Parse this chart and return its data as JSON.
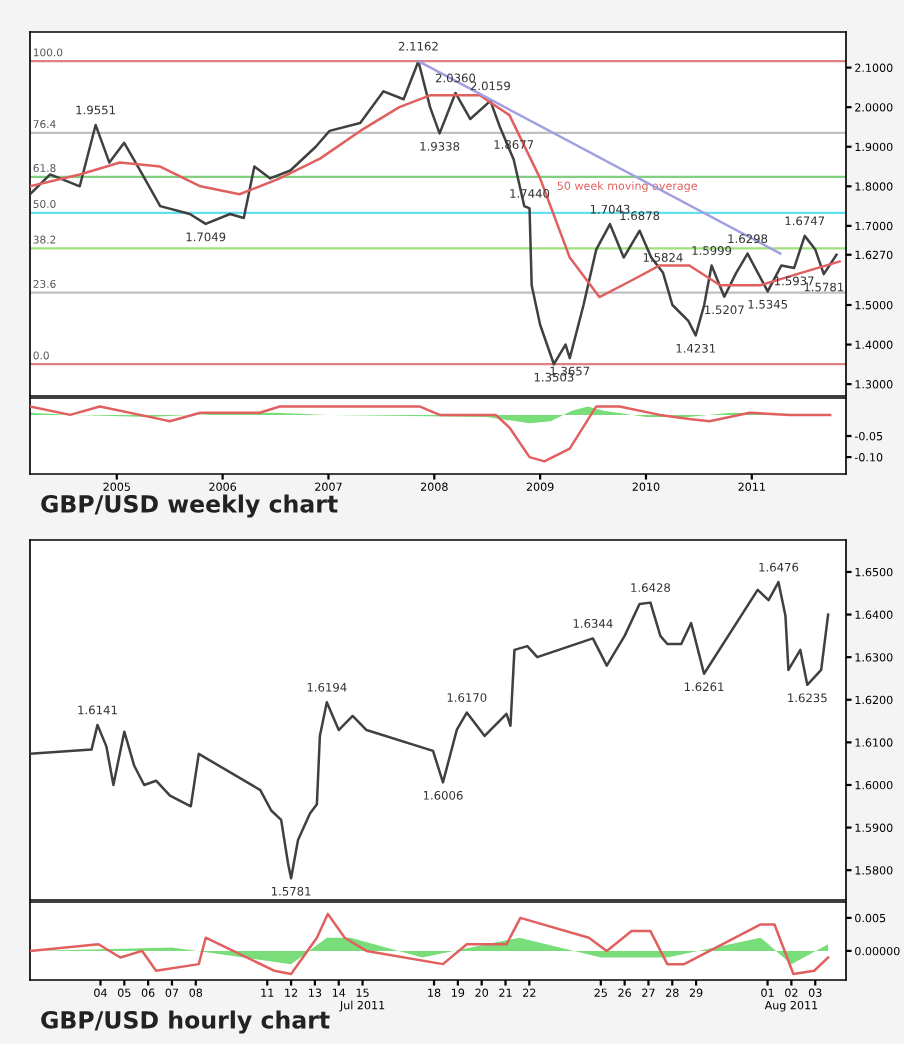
{
  "chart_data": [
    {
      "type": "line",
      "title": "GBP/USD weekly chart",
      "xlim": [
        2004.18,
        2011.89
      ],
      "ylim": [
        1.27,
        2.19
      ],
      "tick_labels": "y",
      "yticks": [
        {
          "value": 1.3,
          "label": "1.3000"
        },
        {
          "value": 1.4,
          "label": "1.4000"
        },
        {
          "value": 1.5,
          "label": "1.5000"
        },
        {
          "value": 1.627,
          "label": "1.6270"
        },
        {
          "value": 1.7,
          "label": "1.7000"
        },
        {
          "value": 1.8,
          "label": "1.8000"
        },
        {
          "value": 1.9,
          "label": "1.9000"
        },
        {
          "value": 2.0,
          "label": "2.0000"
        },
        {
          "value": 2.1,
          "label": "2.1000"
        }
      ],
      "series": [
        {
          "color": "#404040",
          "x": [
            2004.18,
            2004.37,
            2004.65,
            2004.8,
            2004.93,
            2005.07,
            2005.22,
            2005.41,
            2005.69,
            2005.84,
            2006.07,
            2006.2,
            2006.3,
            2006.45,
            2006.64,
            2006.88,
            2007.01,
            2007.3,
            2007.52,
            2007.71,
            2007.85,
            2007.96,
            2008.05,
            2008.2,
            2008.34,
            2008.53,
            2008.62,
            2008.75,
            2008.85,
            2008.9,
            2008.92,
            2009.0,
            2009.13,
            2009.24,
            2009.28,
            2009.41,
            2009.53,
            2009.66,
            2009.79,
            2009.94,
            2010.05,
            2010.16,
            2010.25,
            2010.4,
            2010.47,
            2010.55,
            2010.62,
            2010.74,
            2010.85,
            2010.96,
            2011.15,
            2011.28,
            2011.4,
            2011.5,
            2011.6,
            2011.68,
            2011.8
          ],
          "values": [
            1.78,
            1.83,
            1.8,
            1.9551,
            1.86,
            1.91,
            1.84,
            1.75,
            1.73,
            1.7049,
            1.73,
            1.72,
            1.85,
            1.82,
            1.84,
            1.9,
            1.94,
            1.96,
            2.04,
            2.02,
            2.1162,
            2.0,
            1.9338,
            2.036,
            1.97,
            2.0159,
            1.95,
            1.8677,
            1.75,
            1.744,
            1.55,
            1.45,
            1.3503,
            1.4,
            1.3657,
            1.5,
            1.64,
            1.7043,
            1.62,
            1.6878,
            1.62,
            1.5824,
            1.5,
            1.46,
            1.4231,
            1.5,
            1.5999,
            1.5207,
            1.58,
            1.6298,
            1.5345,
            1.6,
            1.5937,
            1.6747,
            1.64,
            1.5781,
            1.627
          ]
        },
        {
          "name": "50 week moving average",
          "color": "#e06060",
          "x": [
            2004.18,
            2004.65,
            2005.03,
            2005.41,
            2005.79,
            2006.16,
            2006.54,
            2006.92,
            2007.3,
            2007.67,
            2007.96,
            2008.43,
            2008.71,
            2009.0,
            2009.28,
            2009.56,
            2009.85,
            2010.13,
            2010.41,
            2010.7,
            2011.08,
            2011.45,
            2011.83
          ],
          "values": [
            1.8,
            1.83,
            1.86,
            1.85,
            1.8,
            1.78,
            1.82,
            1.87,
            1.94,
            2.0,
            2.03,
            2.03,
            1.98,
            1.82,
            1.62,
            1.52,
            1.56,
            1.6,
            1.6,
            1.55,
            1.55,
            1.58,
            1.61
          ]
        },
        {
          "color": "#a0a0e0",
          "x": [
            2007.85,
            2011.27
          ],
          "values": [
            2.1162,
            1.63
          ]
        }
      ],
      "ref_lines": [
        {
          "axis": "y",
          "value": 2.1162,
          "color": "#e08080"
        },
        {
          "axis": "y",
          "value": 1.935,
          "color": "#c0c0c0"
        },
        {
          "axis": "y",
          "value": 1.824,
          "color": "#80d080"
        },
        {
          "axis": "y",
          "value": 1.733,
          "color": "#60e0f0"
        },
        {
          "axis": "y",
          "value": 1.643,
          "color": "#a0e080"
        },
        {
          "axis": "y",
          "value": 1.531,
          "color": "#c0c0c0"
        },
        {
          "axis": "y",
          "value": 1.3503,
          "color": "#e08080"
        }
      ],
      "annotations": [
        {
          "text": "100.0",
          "x": 2004.18,
          "y": 2.1162
        },
        {
          "text": "76.4",
          "x": 2004.18,
          "y": 1.935
        },
        {
          "text": "61.8",
          "x": 2004.18,
          "y": 1.824
        },
        {
          "text": "50.0",
          "x": 2004.18,
          "y": 1.733
        },
        {
          "text": "38.2",
          "x": 2004.18,
          "y": 1.643
        },
        {
          "text": "23.6",
          "x": 2004.18,
          "y": 1.531
        },
        {
          "text": "0.0",
          "x": 2004.18,
          "y": 1.3503
        },
        {
          "text": "1.9551",
          "x": 2004.8,
          "y": 1.9551
        },
        {
          "text": "1.7049",
          "x": 2005.84,
          "y": 1.7049
        },
        {
          "text": "2.1162",
          "x": 2007.85,
          "y": 2.1162
        },
        {
          "text": "2.0360",
          "x": 2008.2,
          "y": 2.036
        },
        {
          "text": "2.0159",
          "x": 2008.53,
          "y": 2.0159
        },
        {
          "text": "1.9338",
          "x": 2008.05,
          "y": 1.9338
        },
        {
          "text": "1.8677",
          "x": 2008.75,
          "y": 1.8677
        },
        {
          "text": "1.7440",
          "x": 2008.9,
          "y": 1.744
        },
        {
          "text": "1.3503",
          "x": 2009.13,
          "y": 1.3503
        },
        {
          "text": "1.3657",
          "x": 2009.28,
          "y": 1.3657
        },
        {
          "text": "1.7043",
          "x": 2009.66,
          "y": 1.7043
        },
        {
          "text": "1.6878",
          "x": 2009.94,
          "y": 1.6878
        },
        {
          "text": "1.5824",
          "x": 2010.16,
          "y": 1.5824
        },
        {
          "text": "1.4231",
          "x": 2010.47,
          "y": 1.4231
        },
        {
          "text": "1.5999",
          "x": 2010.62,
          "y": 1.5999
        },
        {
          "text": "1.5207",
          "x": 2010.74,
          "y": 1.5207
        },
        {
          "text": "1.6298",
          "x": 2010.96,
          "y": 1.6298
        },
        {
          "text": "1.5345",
          "x": 2011.15,
          "y": 1.5345
        },
        {
          "text": "1.5937",
          "x": 2011.4,
          "y": 1.5937
        },
        {
          "text": "1.6747",
          "x": 2011.5,
          "y": 1.6747
        },
        {
          "text": "1.5781",
          "x": 2011.68,
          "y": 1.5781
        }
      ]
    },
    {
      "type": "line",
      "xlim": [
        2004.18,
        2011.89
      ],
      "ylim": [
        -0.14,
        0.04
      ],
      "xticks": [
        2005,
        2006,
        2007,
        2008,
        2009,
        2010,
        2011
      ],
      "yticks": [
        {
          "value": -0.1,
          "label": "-0.10"
        },
        {
          "value": -0.05,
          "label": "-0.05"
        }
      ],
      "series": [
        {
          "type": "area",
          "color": "#40d040",
          "x": [
            2004.18,
            2004.6,
            2005.3,
            2006.0,
            2006.5,
            2007.0,
            2008.5,
            2008.9,
            2009.1,
            2009.3,
            2009.45,
            2009.6,
            2010.0,
            2010.4,
            2010.8,
            2011.2,
            2011.8
          ],
          "values": [
            0.005,
            0.0,
            -0.005,
            0.003,
            0.005,
            0.0,
            -0.005,
            -0.02,
            -0.015,
            0.01,
            0.02,
            0.01,
            -0.005,
            -0.005,
            0.005,
            0.003,
            0.0
          ]
        },
        {
          "color": "#e06060",
          "x": [
            2004.18,
            2004.56,
            2004.84,
            2005.41,
            2005.5,
            2005.79,
            2006.35,
            2006.54,
            2007.11,
            2007.86,
            2008.05,
            2008.58,
            2008.71,
            2008.9,
            2009.04,
            2009.28,
            2009.53,
            2009.75,
            2010.13,
            2010.41,
            2010.6,
            2010.98,
            2011.36,
            2011.74
          ],
          "values": [
            0.02,
            0.0,
            0.02,
            -0.01,
            -0.015,
            0.005,
            0.005,
            0.02,
            0.02,
            0.02,
            0.0,
            0.0,
            -0.03,
            -0.1,
            -0.11,
            -0.08,
            0.02,
            0.02,
            0.0,
            -0.01,
            -0.015,
            0.005,
            0.0,
            0.0
          ]
        }
      ]
    },
    {
      "type": "line",
      "title": "GBP/USD hourly chart",
      "xlim": [
        "2011-07-01T13:00",
        "2011-08-04T19:00"
      ],
      "ylim": [
        1.573,
        1.6575
      ],
      "tick_labels": "y",
      "yticks": [
        {
          "value": 1.58,
          "label": "1.5800"
        },
        {
          "value": 1.59,
          "label": "1.5900"
        },
        {
          "value": 1.6,
          "label": "1.6000"
        },
        {
          "value": 1.61,
          "label": "1.6100"
        },
        {
          "value": 1.62,
          "label": "1.6200"
        },
        {
          "value": 1.63,
          "label": "1.6300"
        },
        {
          "value": 1.64,
          "label": "1.6400"
        },
        {
          "value": 1.65,
          "label": "1.6500"
        }
      ],
      "series": [
        {
          "color": "#404040",
          "x": [
            "2011-07-01T13:00",
            "2011-07-04T03:00",
            "2011-07-04T09:00",
            "2011-07-04T18:00",
            "2011-07-05T01:00",
            "2011-07-05T12:00",
            "2011-07-05T22:00",
            "2011-07-06T08:00",
            "2011-07-06T20:00",
            "2011-07-07T10:00",
            "2011-07-08T07:00",
            "2011-07-08T15:00",
            "2011-07-11T05:00",
            "2011-07-11T16:00",
            "2011-07-12T02:00",
            "2011-07-12T09:00",
            "2011-07-12T12:00",
            "2011-07-12T19:00",
            "2011-07-13T07:00",
            "2011-07-13T14:00",
            "2011-07-13T17:00",
            "2011-07-14T00:00",
            "2011-07-14T12:00",
            "2011-07-15T02:00",
            "2011-07-15T16:00",
            "2011-07-18T11:00",
            "2011-07-18T21:00",
            "2011-07-19T11:00",
            "2011-07-19T21:00",
            "2011-07-20T15:00",
            "2011-07-21T13:00",
            "2011-07-21T17:00",
            "2011-07-21T21:00",
            "2011-07-22T10:00",
            "2011-07-22T20:00",
            "2011-07-25T04:00",
            "2011-07-25T18:00",
            "2011-07-26T12:00",
            "2011-07-27T03:00",
            "2011-07-27T14:00",
            "2011-07-28T00:00",
            "2011-07-28T07:00",
            "2011-07-28T21:00",
            "2011-07-29T07:00",
            "2011-07-29T20:00",
            "2011-08-01T02:00",
            "2011-08-01T13:00",
            "2011-08-01T23:00",
            "2011-08-02T06:00",
            "2011-08-02T09:00",
            "2011-08-02T21:00",
            "2011-08-03T04:00",
            "2011-08-03T18:00",
            "2011-08-04T01:00"
          ],
          "values": [
            1.6073,
            1.6083,
            1.6141,
            1.609,
            1.6,
            1.6125,
            1.6045,
            1.6,
            1.601,
            1.5975,
            1.595,
            1.6073,
            1.5988,
            1.594,
            1.5918,
            1.5815,
            1.5781,
            1.5871,
            1.5933,
            1.5955,
            1.6115,
            1.6194,
            1.6129,
            1.6162,
            1.6129,
            1.608,
            1.6006,
            1.613,
            1.617,
            1.6115,
            1.6167,
            1.6139,
            1.6317,
            1.6326,
            1.63,
            1.6344,
            1.628,
            1.635,
            1.6425,
            1.6428,
            1.635,
            1.6331,
            1.6331,
            1.638,
            1.6261,
            1.6458,
            1.6434,
            1.6476,
            1.6397,
            1.627,
            1.6317,
            1.6235,
            1.627,
            1.64
          ]
        }
      ],
      "annotations": [
        {
          "text": "1.6141",
          "x": "2011-07-04T09:00",
          "y": 1.6141
        },
        {
          "text": "1.5781",
          "x": "2011-07-12T12:00",
          "y": 1.5781
        },
        {
          "text": "1.6194",
          "x": "2011-07-14T00:00",
          "y": 1.6194
        },
        {
          "text": "1.6006",
          "x": "2011-07-18T21:00",
          "y": 1.6006
        },
        {
          "text": "1.6170",
          "x": "2011-07-19T21:00",
          "y": 1.617
        },
        {
          "text": "1.6344",
          "x": "2011-07-25T04:00",
          "y": 1.6344
        },
        {
          "text": "1.6428",
          "x": "2011-07-27T14:00",
          "y": 1.6428
        },
        {
          "text": "1.6261",
          "x": "2011-07-29T20:00",
          "y": 1.6261
        },
        {
          "text": "1.6476",
          "x": "2011-08-01T23:00",
          "y": 1.6476
        },
        {
          "text": "1.6235",
          "x": "2011-08-03T04:00",
          "y": 1.6235
        }
      ]
    },
    {
      "type": "line",
      "xlim": [
        "2011-07-01T13:00",
        "2011-08-04T19:00"
      ],
      "ylim": [
        -0.0044,
        0.0074
      ],
      "xticks": [
        {
          "value": "2011-07-04T12:00",
          "label": "04"
        },
        {
          "value": "2011-07-05T12:00",
          "label": "05"
        },
        {
          "value": "2011-07-06T12:00",
          "label": "06"
        },
        {
          "value": "2011-07-07T12:00",
          "label": "07"
        },
        {
          "value": "2011-07-08T12:00",
          "label": "08"
        },
        {
          "value": "2011-07-11T12:00",
          "label": "11"
        },
        {
          "value": "2011-07-12T12:00",
          "label": "12"
        },
        {
          "value": "2011-07-13T12:00",
          "label": "13"
        },
        {
          "value": "2011-07-14T12:00",
          "label": "14"
        },
        {
          "value": "2011-07-15T12:00",
          "label": "15\nJul 2011"
        },
        {
          "value": "2011-07-18T12:00",
          "label": "18"
        },
        {
          "value": "2011-07-19T12:00",
          "label": "19"
        },
        {
          "value": "2011-07-20T12:00",
          "label": "20"
        },
        {
          "value": "2011-07-21T12:00",
          "label": "21"
        },
        {
          "value": "2011-07-22T12:00",
          "label": "22"
        },
        {
          "value": "2011-07-25T12:00",
          "label": "25"
        },
        {
          "value": "2011-07-26T12:00",
          "label": "26"
        },
        {
          "value": "2011-07-27T12:00",
          "label": "27"
        },
        {
          "value": "2011-07-28T12:00",
          "label": "28"
        },
        {
          "value": "2011-07-29T12:00",
          "label": "29"
        },
        {
          "value": "2011-08-01T12:00",
          "label": "01"
        },
        {
          "value": "2011-08-02T12:00",
          "label": "02\nAug 2011"
        },
        {
          "value": "2011-08-03T12:00",
          "label": "03"
        }
      ],
      "yticks": [
        {
          "value": 0,
          "label": "0.00000"
        },
        {
          "value": 0.005,
          "label": "0.005"
        }
      ],
      "series": [
        {
          "type": "area",
          "color": "#40d040",
          "x": [
            "2011-07-01T13:00",
            "2011-07-07T12:00",
            "2011-07-12T12:00",
            "2011-07-14T00:00",
            "2011-07-15T00:00",
            "2011-07-18T00:00",
            "2011-07-22T02:00",
            "2011-07-25T12:00",
            "2011-07-28T07:00",
            "2011-08-01T05:00",
            "2011-08-02T12:00",
            "2011-08-04T01:00"
          ],
          "values": [
            0,
            0.0005,
            -0.002,
            0.002,
            0.002,
            -0.001,
            0.002,
            -0.001,
            -0.001,
            0.002,
            -0.002,
            0.001
          ]
        },
        {
          "color": "#e06060",
          "x": [
            "2011-07-01T13:00",
            "2011-07-04T10:00",
            "2011-07-05T08:00",
            "2011-07-06T06:00",
            "2011-07-06T20:00",
            "2011-07-08T15:00",
            "2011-07-08T22:00",
            "2011-07-11T19:00",
            "2011-07-12T12:00",
            "2011-07-13T14:00",
            "2011-07-14T01:00",
            "2011-07-14T18:00",
            "2011-07-15T16:00",
            "2011-07-18T21:00",
            "2011-07-19T21:00",
            "2011-07-21T13:00",
            "2011-07-22T03:00",
            "2011-07-25T00:00",
            "2011-07-25T18:00",
            "2011-07-26T19:00",
            "2011-07-27T14:00",
            "2011-07-28T07:00",
            "2011-07-29T00:00",
            "2011-08-01T05:00",
            "2011-08-01T19:00",
            "2011-08-02T14:00",
            "2011-08-03T11:00",
            "2011-08-04T01:00"
          ],
          "values": [
            0,
            0.001,
            -0.001,
            0.0,
            -0.003,
            -0.002,
            0.002,
            -0.003,
            -0.0035,
            0.002,
            0.0056,
            0.002,
            0.0,
            -0.002,
            0.001,
            0.001,
            0.005,
            0.002,
            0.0,
            0.003,
            0.003,
            -0.002,
            -0.002,
            0.004,
            0.004,
            -0.0035,
            -0.003,
            -0.001
          ]
        }
      ]
    }
  ]
}
